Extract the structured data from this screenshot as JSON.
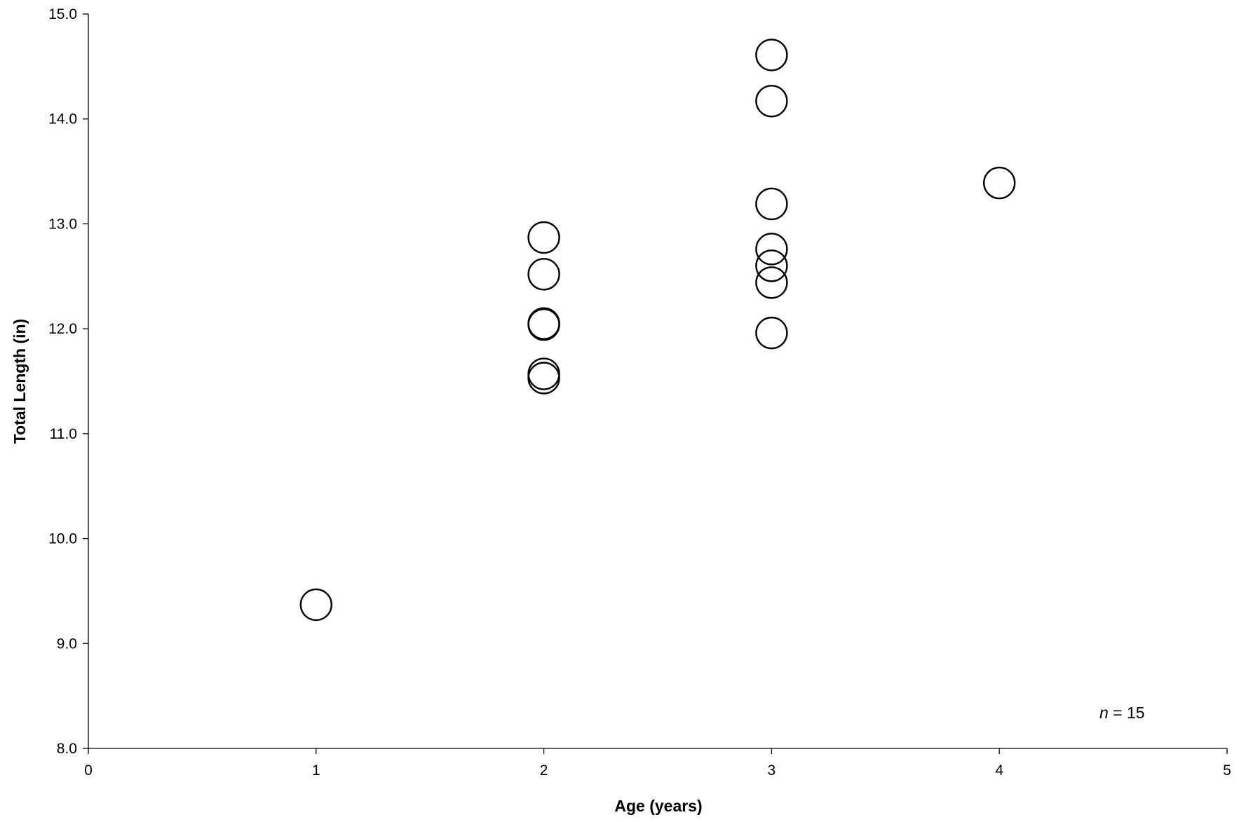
{
  "chart_data": {
    "type": "scatter",
    "title": "",
    "xlabel": "Age (years)",
    "ylabel": "Total Length (in)",
    "xlim": [
      0,
      5
    ],
    "ylim": [
      8.0,
      15.0
    ],
    "xticks": [
      "0",
      "1",
      "2",
      "3",
      "4",
      "5"
    ],
    "yticks": [
      "8.0",
      "9.0",
      "10.0",
      "11.0",
      "12.0",
      "13.0",
      "14.0",
      "15.0"
    ],
    "grid": false,
    "legend": "none",
    "marker": "open-circle",
    "annotation": {
      "italic": "n",
      "text": " = 15",
      "position": "bottom-right"
    },
    "series": [
      {
        "points": [
          {
            "x": 1,
            "y": 9.37
          },
          {
            "x": 2,
            "y": 12.87
          },
          {
            "x": 2,
            "y": 12.52
          },
          {
            "x": 2,
            "y": 12.05
          },
          {
            "x": 2,
            "y": 12.04
          },
          {
            "x": 2,
            "y": 11.57
          },
          {
            "x": 2,
            "y": 11.53
          },
          {
            "x": 3,
            "y": 14.61
          },
          {
            "x": 3,
            "y": 14.17
          },
          {
            "x": 3,
            "y": 13.19
          },
          {
            "x": 3,
            "y": 12.76
          },
          {
            "x": 3,
            "y": 12.6
          },
          {
            "x": 3,
            "y": 12.44
          },
          {
            "x": 3,
            "y": 11.96
          },
          {
            "x": 4,
            "y": 13.39
          }
        ]
      }
    ]
  }
}
